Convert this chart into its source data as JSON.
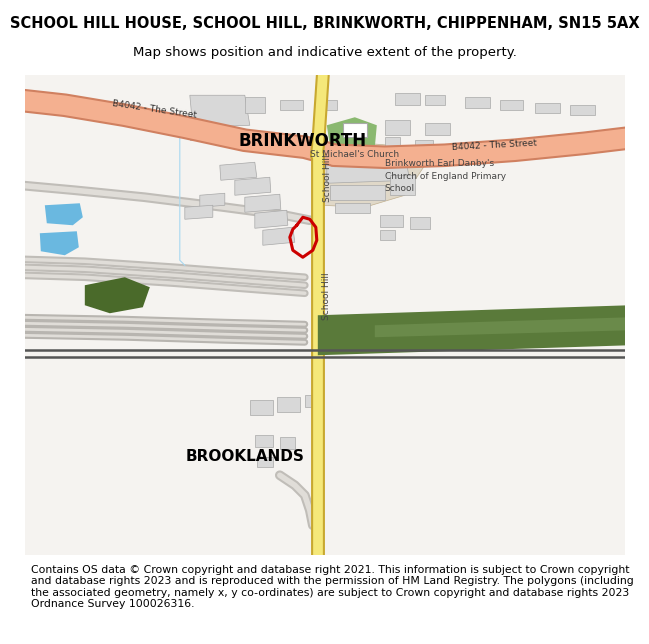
{
  "title_line1": "SCHOOL HILL HOUSE, SCHOOL HILL, BRINKWORTH, CHIPPENHAM, SN15 5AX",
  "title_line2": "Map shows position and indicative extent of the property.",
  "title_fontsize": 10.5,
  "subtitle_fontsize": 9.5,
  "footer_text": "Contains OS data © Crown copyright and database right 2021. This information is subject to Crown copyright and database rights 2023 and is reproduced with the permission of HM Land Registry. The polygons (including the associated geometry, namely x, y co-ordinates) are subject to Crown copyright and database rights 2023 Ordnance Survey 100026316.",
  "footer_fontsize": 7.8,
  "fig_width": 6.0,
  "fig_height": 6.25,
  "background_color": "#ffffff",
  "map_bg": "#f5f3f0",
  "road_b4042_color": "#f4b090",
  "road_b4042_outline": "#d08060",
  "road_sh_color": "#f5e87a",
  "road_sh_outline": "#c8a830",
  "track_color": "#e0ddd8",
  "track_outline": "#c0bdb8",
  "green_railway": "#5a7a3a",
  "green_left": "#4a6a2a",
  "green_church": "#8ab870",
  "blue_pond": "#6ab8e0",
  "building_fill": "#d8d8d8",
  "building_edge": "#a8a8a8",
  "school_ground": "#e0d8c8",
  "plot_color": "#cc0000",
  "label_brinkworth": "BRINKWORTH",
  "label_brooklands": "BROOKLANDS",
  "label_church": "St Michael's Church",
  "label_school": "Brinkworth Earl Danby's\nChurch of England Primary\nSchool",
  "label_b4042_left": "B4042 - The Street",
  "label_b4042_right": "B4042 - The Street",
  "label_schoolhill_top": "School Hill",
  "label_schoolhill_bot": "School Hill"
}
